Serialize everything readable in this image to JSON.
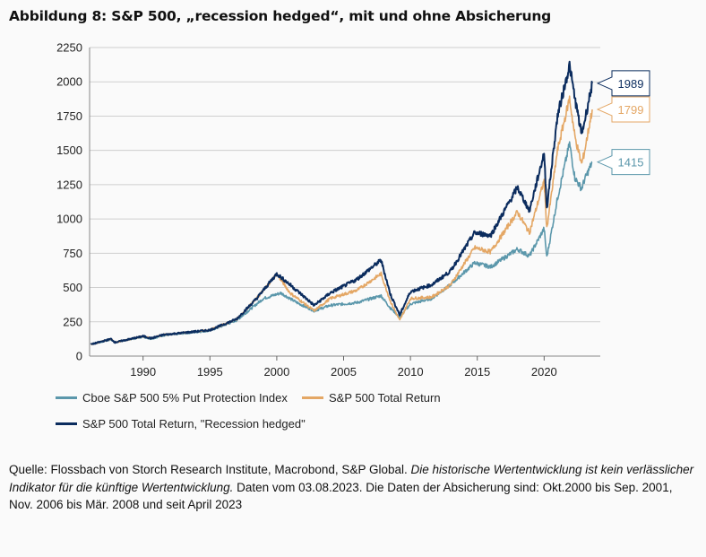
{
  "title": "Abbildung 8: S&P 500, „recession hedged“, mit und ohne Absicherung",
  "chart_data": {
    "type": "line",
    "ylim": [
      0,
      2250
    ],
    "yticks": [
      0,
      250,
      500,
      750,
      1000,
      1250,
      1500,
      1750,
      2000,
      2250
    ],
    "xlim": [
      1986.0,
      2024.2
    ],
    "xticks": [
      1990,
      1995,
      2000,
      2005,
      2010,
      2015,
      2020
    ],
    "grid": true,
    "legend_position": "bottom-left",
    "series": [
      {
        "name": "Cboe S&P 500 5% Put Protection Index",
        "color": "#5b97ab",
        "end_label": "1415",
        "x": [
          1986.1,
          1987.6,
          1987.9,
          1990.0,
          1990.6,
          1991.5,
          1995.0,
          1997.0,
          1999.0,
          2000.3,
          2001.5,
          2002.8,
          2004.0,
          2006.0,
          2007.8,
          2008.5,
          2009.2,
          2010.0,
          2011.6,
          2013.0,
          2014.8,
          2016.0,
          2018.0,
          2018.9,
          2020.0,
          2020.2,
          2021.0,
          2021.9,
          2022.3,
          2022.8,
          2023.0,
          2023.6
        ],
        "values": [
          85,
          120,
          100,
          140,
          125,
          150,
          185,
          260,
          420,
          460,
          390,
          330,
          370,
          390,
          440,
          350,
          285,
          380,
          420,
          520,
          680,
          650,
          780,
          730,
          930,
          720,
          1150,
          1550,
          1300,
          1220,
          1280,
          1415
        ]
      },
      {
        "name": "S&P 500 Total Return",
        "color": "#e4a765",
        "end_label": "1799",
        "x": [
          1986.1,
          1987.6,
          1987.9,
          1990.0,
          1990.6,
          1991.5,
          1995.0,
          1997.0,
          1998.5,
          2000.0,
          2001.0,
          2002.8,
          2004.0,
          2006.0,
          2007.8,
          2008.5,
          2009.2,
          2010.0,
          2011.6,
          2013.0,
          2014.8,
          2016.0,
          2018.0,
          2018.9,
          2020.0,
          2020.2,
          2021.0,
          2021.9,
          2022.3,
          2022.8,
          2023.0,
          2023.6
        ],
        "values": [
          85,
          125,
          100,
          145,
          130,
          155,
          190,
          270,
          420,
          600,
          460,
          330,
          420,
          480,
          600,
          400,
          260,
          420,
          430,
          520,
          790,
          760,
          1050,
          900,
          1280,
          930,
          1500,
          1880,
          1600,
          1400,
          1480,
          1799
        ]
      },
      {
        "name": "S&P 500 Total Return, \"Recession hedged\"",
        "color": "#0b2c5e",
        "end_label": "1989",
        "x": [
          1986.1,
          1987.6,
          1987.9,
          1990.0,
          1990.6,
          1991.5,
          1995.0,
          1997.0,
          1998.5,
          2000.0,
          2001.0,
          2002.8,
          2004.0,
          2006.0,
          2007.8,
          2008.5,
          2009.2,
          2010.0,
          2011.6,
          2013.0,
          2014.8,
          2016.0,
          2018.0,
          2018.9,
          2020.0,
          2020.2,
          2021.0,
          2021.9,
          2022.3,
          2022.8,
          2023.0,
          2023.6
        ],
        "values": [
          85,
          125,
          100,
          145,
          130,
          155,
          190,
          270,
          420,
          600,
          520,
          370,
          460,
          560,
          700,
          450,
          300,
          470,
          520,
          620,
          900,
          880,
          1230,
          1060,
          1480,
          1080,
          1750,
          2120,
          1880,
          1620,
          1700,
          1989
        ]
      }
    ]
  },
  "legend": [
    "Cboe S&P 500 5% Put Protection Index",
    "S&P 500 Total Return",
    "S&P 500 Total Return, \"Recession hedged\""
  ],
  "source": {
    "prefix": "Quelle: Flossbach von Storch Research Institute, Macrobond, S&P Global. ",
    "italic": "Die historische Wertentwicklung ist kein verlässlicher Indikator für die künftige Wertentwicklung.",
    "suffix": " Daten vom 03.08.2023. Die Daten der Absicherung sind: Okt.2000 bis Sep. 2001, Nov. 2006 bis Mär. 2008 und seit April 2023"
  }
}
